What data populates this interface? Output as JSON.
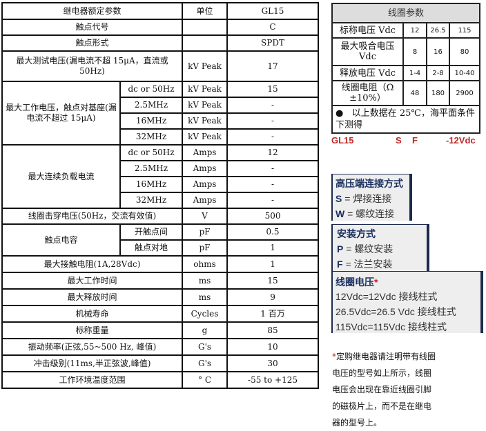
{
  "main_table": {
    "header": {
      "param": "继电器额定参数",
      "unit": "单位",
      "model": "GL15"
    },
    "contact_code": {
      "label": "触点代号",
      "unit": "",
      "value": "C"
    },
    "contact_form": {
      "label": "触点形式",
      "unit": "",
      "value": "SPDT"
    },
    "max_test_voltage": {
      "label": "最大测试电压(漏电流不超 15μA，直流或50Hz)",
      "unit": "kV Peak",
      "value": "17"
    },
    "max_working_voltage": {
      "label": "最大工作电压，触点对基座(漏电流不超过 15μA)",
      "rows": [
        {
          "freq": "dc or 50Hz",
          "unit": "kV Peak",
          "value": "15"
        },
        {
          "freq": "2.5MHz",
          "unit": "kV Peak",
          "value": "-"
        },
        {
          "freq": "16MHz",
          "unit": "kV Peak",
          "value": "-"
        },
        {
          "freq": "32MHz",
          "unit": "kV Peak",
          "value": "-"
        }
      ]
    },
    "max_continuous_current": {
      "label": "最大连续负载电流",
      "rows": [
        {
          "freq": "dc or 50Hz",
          "unit": "Amps",
          "value": "12"
        },
        {
          "freq": "2.5MHz",
          "unit": "Amps",
          "value": "-"
        },
        {
          "freq": "16MHz",
          "unit": "Amps",
          "value": "-"
        },
        {
          "freq": "32MHz",
          "unit": "Amps",
          "value": "-"
        }
      ]
    },
    "coil_breakdown": {
      "label": "线圈击穿电压(50Hz，交流有效值)",
      "unit": "V",
      "value": "500"
    },
    "contact_capacitance": {
      "label": "触点电容",
      "rows": [
        {
          "sub": "开触点间",
          "unit": "pF",
          "value": "0.5"
        },
        {
          "sub": "触点对地",
          "unit": "pF",
          "value": "1"
        }
      ]
    },
    "simple_rows": [
      {
        "label": "最大接触电阻(1A,28Vdc)",
        "unit": "ohms",
        "value": "1"
      },
      {
        "label": "最大工作时间",
        "unit": "ms",
        "value": "15"
      },
      {
        "label": "最大释放时间",
        "unit": "ms",
        "value": "9"
      },
      {
        "label": "机械寿命",
        "unit": "Cycles",
        "value": "1 百万"
      },
      {
        "label": "标称重量",
        "unit": "g",
        "value": "85"
      },
      {
        "label": "振动频率(正弦,55~500 Hz, 峰值)",
        "unit": "G's",
        "value": "10"
      },
      {
        "label": "冲击级别(11ms,半正弦波,峰值)",
        "unit": "G's",
        "value": "30"
      },
      {
        "label": "工作环境温度范围",
        "unit": "° C",
        "value": "-55 to +125"
      }
    ]
  },
  "coil_table": {
    "title": "线圈参数",
    "rows": [
      {
        "label": "标称电压 Vdc",
        "values": [
          "12",
          "26.5",
          "115"
        ]
      },
      {
        "label": "最大吸合电压 Vdc",
        "values": [
          "8",
          "16",
          "80"
        ]
      },
      {
        "label": "释放电压 Vdc",
        "values": [
          "1-4",
          "2-8",
          "10-40"
        ]
      },
      {
        "label": "线圈电阻（Ω ±10%）",
        "values": [
          "48",
          "180",
          "2900"
        ]
      }
    ],
    "note": "以上数据在 25℃，海平面条件下测得"
  },
  "order_code": {
    "model": "GL15",
    "terminal": "S",
    "mount": "F",
    "voltage": "-12Vdc"
  },
  "hv_connection": {
    "title": "高压端连接方式",
    "items": [
      {
        "key": "S",
        "desc": "焊接连接"
      },
      {
        "key": "W",
        "desc": "螺纹连接"
      }
    ]
  },
  "mounting": {
    "title": "安装方式",
    "items": [
      {
        "key": "P",
        "desc": "螺纹安装"
      },
      {
        "key": "F",
        "desc": "法兰安装"
      }
    ]
  },
  "coil_voltage": {
    "title": "线圈电压",
    "star": "*",
    "items": [
      "12Vdc=12Vdc  接线柱式",
      "26.5Vdc=26.5 Vdc  接线柱式",
      "115Vdc=115Vdc  接线柱式"
    ]
  },
  "footnote": {
    "star": "*",
    "text": "定购继电器请注明带有线圈电压的型号如上所示，线圈电压会出现在靠近线圈引脚的磁极片上，而不是在继电器的型号上。"
  },
  "colors": {
    "accent_red": "#c0282a",
    "navy": "#1b2a4a",
    "box_bg": "#eeeeee"
  }
}
